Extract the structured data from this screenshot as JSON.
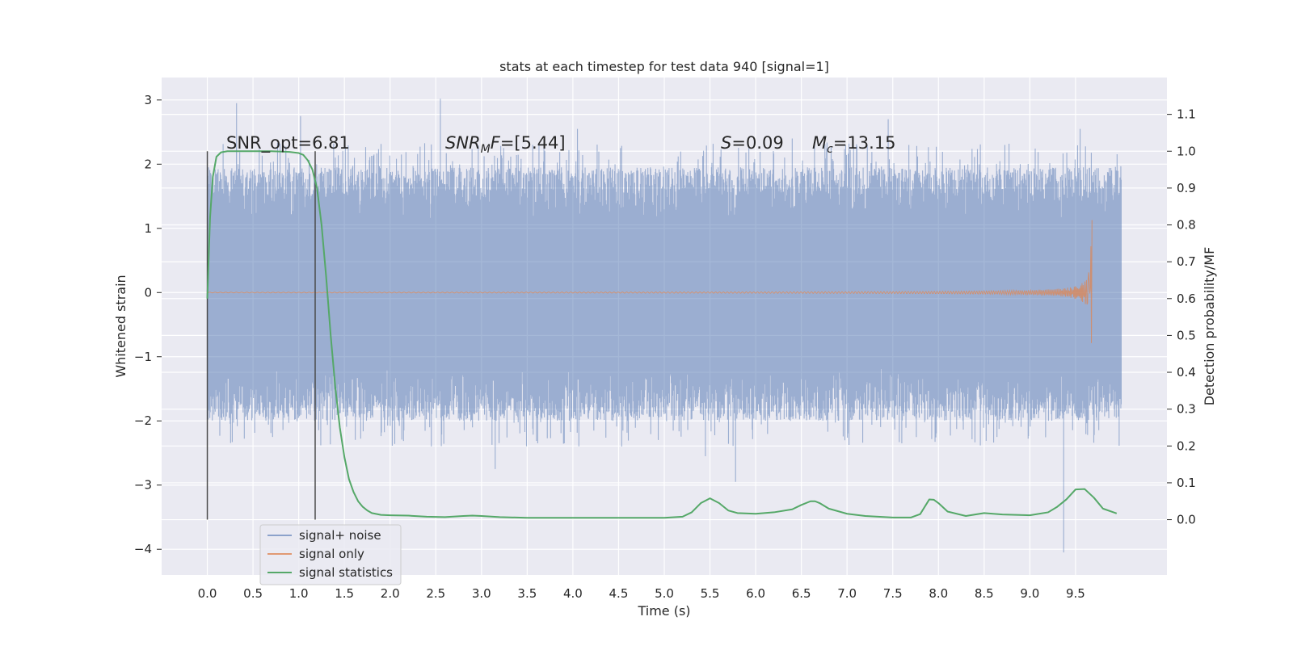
{
  "chart_data": {
    "type": "line",
    "title": "stats at each timestep for test data 940 [signal=1]",
    "xlabel": "Time (s)",
    "ylabel": "Whitened strain",
    "y2label": "Detection probability/MF",
    "xlim": [
      -0.5,
      10.5
    ],
    "ylim": [
      -4.4,
      3.35
    ],
    "y2lim": [
      -0.15,
      1.2
    ],
    "xticks": [
      "0.0",
      "0.5",
      "1.0",
      "1.5",
      "2.0",
      "2.5",
      "3.0",
      "3.5",
      "4.0",
      "4.5",
      "5.0",
      "5.5",
      "6.0",
      "6.5",
      "7.0",
      "7.5",
      "8.0",
      "8.5",
      "9.0",
      "9.5"
    ],
    "yticks": [
      "3",
      "2",
      "1",
      "0",
      "−1",
      "−2",
      "−3",
      "−4"
    ],
    "y2ticks": [
      "0.0",
      "0.1",
      "0.2",
      "0.3",
      "0.4",
      "0.5",
      "0.6",
      "0.7",
      "0.8",
      "0.9",
      "1.0",
      "1.1"
    ],
    "grid": true,
    "legend_position": "lower-left",
    "colors": {
      "noise": "#4c72b0",
      "signal": "#dd8452",
      "stats": "#55a868",
      "background": "#eaeaf2",
      "vline": "#4a4a4a"
    },
    "annotations": {
      "snr_opt": "SNR_opt=6.81",
      "snr_mf_main": "SNR",
      "snr_mf_sub": "M",
      "snr_mf_suffix": "F",
      "snr_mf_value": "=[5.44]",
      "s_main": "S",
      "s_value": "=0.09",
      "mc_main": "M",
      "mc_sub": "c",
      "mc_value": "=13.15"
    },
    "vertical_lines": [
      0.0,
      1.18
    ],
    "series": [
      {
        "name": "signal+ noise",
        "kind": "noise",
        "x_range": [
          0.0,
          10.0
        ],
        "envelope_high": 1.95,
        "envelope_low": -2.0,
        "extremes": [
          [
            0.32,
            2.95
          ],
          [
            2.55,
            3.02
          ],
          [
            1.02,
            2.75
          ],
          [
            9.37,
            -4.05
          ],
          [
            5.78,
            -2.95
          ],
          [
            3.15,
            -2.75
          ],
          [
            7.45,
            2.7
          ],
          [
            4.05,
            2.55
          ],
          [
            9.55,
            2.55
          ],
          [
            6.4,
            2.4
          ],
          [
            5.45,
            -2.55
          ]
        ]
      },
      {
        "name": "signal only",
        "kind": "chirp",
        "x_range": [
          0.0,
          9.68
        ],
        "peak": 1.15,
        "trough": -0.8,
        "merger_time": 9.68
      },
      {
        "name": "signal statistics",
        "kind": "curve",
        "x": [
          0.0,
          0.03,
          0.06,
          0.1,
          0.15,
          0.22,
          0.3,
          0.4,
          0.5,
          0.7,
          0.9,
          1.0,
          1.05,
          1.1,
          1.15,
          1.2,
          1.25,
          1.3,
          1.35,
          1.4,
          1.45,
          1.5,
          1.55,
          1.6,
          1.65,
          1.7,
          1.75,
          1.8,
          1.9,
          2.0,
          2.2,
          2.4,
          2.6,
          2.8,
          2.9,
          3.0,
          3.2,
          3.5,
          4.0,
          4.5,
          5.0,
          5.2,
          5.3,
          5.4,
          5.5,
          5.6,
          5.7,
          5.8,
          6.0,
          6.2,
          6.4,
          6.5,
          6.6,
          6.65,
          6.7,
          6.8,
          7.0,
          7.2,
          7.5,
          7.7,
          7.8,
          7.9,
          7.95,
          8.0,
          8.1,
          8.3,
          8.5,
          8.7,
          9.0,
          9.2,
          9.3,
          9.4,
          9.5,
          9.6,
          9.7,
          9.8,
          9.95
        ],
        "y": [
          0.6,
          0.82,
          0.93,
          0.985,
          0.997,
          1.0,
          1.0,
          1.0,
          1.0,
          1.0,
          0.998,
          0.995,
          0.99,
          0.975,
          0.95,
          0.9,
          0.8,
          0.66,
          0.5,
          0.36,
          0.25,
          0.17,
          0.11,
          0.075,
          0.05,
          0.035,
          0.025,
          0.018,
          0.013,
          0.012,
          0.011,
          0.008,
          0.007,
          0.01,
          0.011,
          0.01,
          0.007,
          0.005,
          0.005,
          0.005,
          0.005,
          0.008,
          0.02,
          0.045,
          0.058,
          0.045,
          0.025,
          0.018,
          0.016,
          0.02,
          0.028,
          0.04,
          0.05,
          0.05,
          0.045,
          0.03,
          0.016,
          0.01,
          0.006,
          0.006,
          0.015,
          0.055,
          0.054,
          0.045,
          0.022,
          0.01,
          0.018,
          0.014,
          0.012,
          0.02,
          0.035,
          0.055,
          0.082,
          0.083,
          0.06,
          0.03,
          0.017
        ]
      }
    ]
  }
}
